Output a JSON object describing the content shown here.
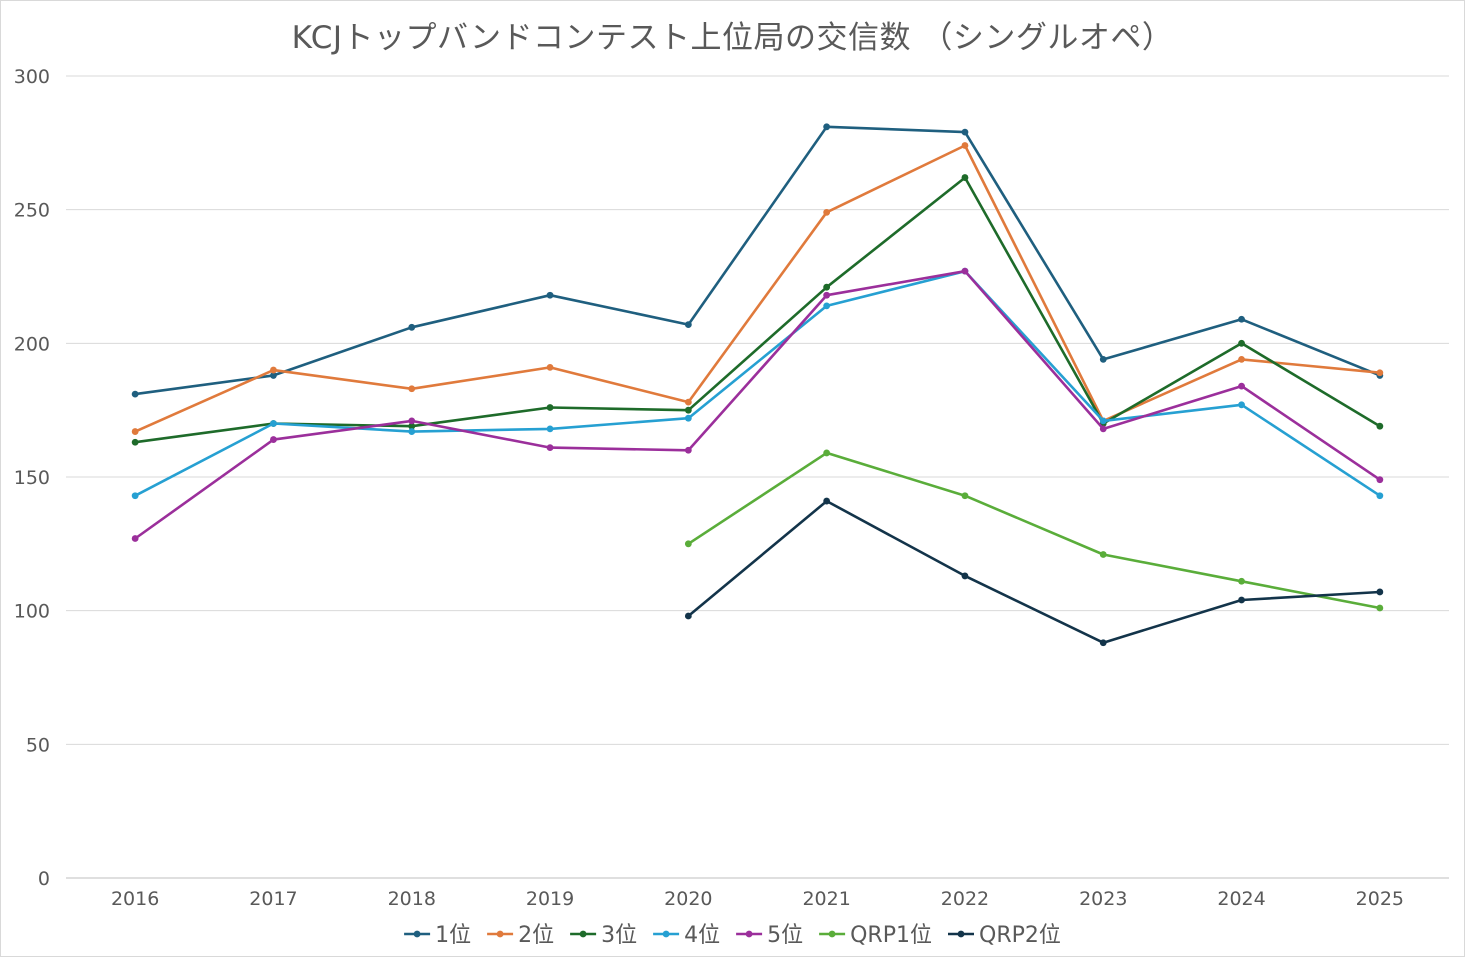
{
  "chart_data": {
    "type": "line",
    "title": "KCJトップバンドコンテスト上位局の交信数 （シングルオペ）",
    "xlabel": "",
    "ylabel": "",
    "ylim": [
      0,
      300
    ],
    "y_ticks": [
      0,
      50,
      100,
      150,
      200,
      250,
      300
    ],
    "grid": "horizontal",
    "legend_position": "bottom",
    "categories": [
      "2016",
      "2017",
      "2018",
      "2019",
      "2020",
      "2021",
      "2022",
      "2023",
      "2024",
      "2025"
    ],
    "series": [
      {
        "name": "1位",
        "color": "#1f5f7f",
        "values": [
          181,
          188,
          206,
          218,
          207,
          281,
          279,
          194,
          209,
          188
        ]
      },
      {
        "name": "2位",
        "color": "#e07a3c",
        "values": [
          167,
          190,
          183,
          191,
          178,
          249,
          274,
          171,
          194,
          189
        ]
      },
      {
        "name": "3位",
        "color": "#1e6b2a",
        "values": [
          163,
          170,
          169,
          176,
          175,
          221,
          262,
          170,
          200,
          169
        ]
      },
      {
        "name": "4位",
        "color": "#26a0d2",
        "values": [
          143,
          170,
          167,
          168,
          172,
          214,
          227,
          171,
          177,
          143
        ]
      },
      {
        "name": "5位",
        "color": "#9b2f9b",
        "values": [
          127,
          164,
          171,
          161,
          160,
          218,
          227,
          168,
          184,
          149
        ]
      },
      {
        "name": "QRP1位",
        "color": "#5aad3a",
        "values": [
          null,
          null,
          null,
          null,
          125,
          159,
          143,
          121,
          111,
          101
        ]
      },
      {
        "name": "QRP2位",
        "color": "#13344a",
        "values": [
          null,
          null,
          null,
          null,
          98,
          141,
          113,
          88,
          104,
          107
        ]
      }
    ]
  }
}
